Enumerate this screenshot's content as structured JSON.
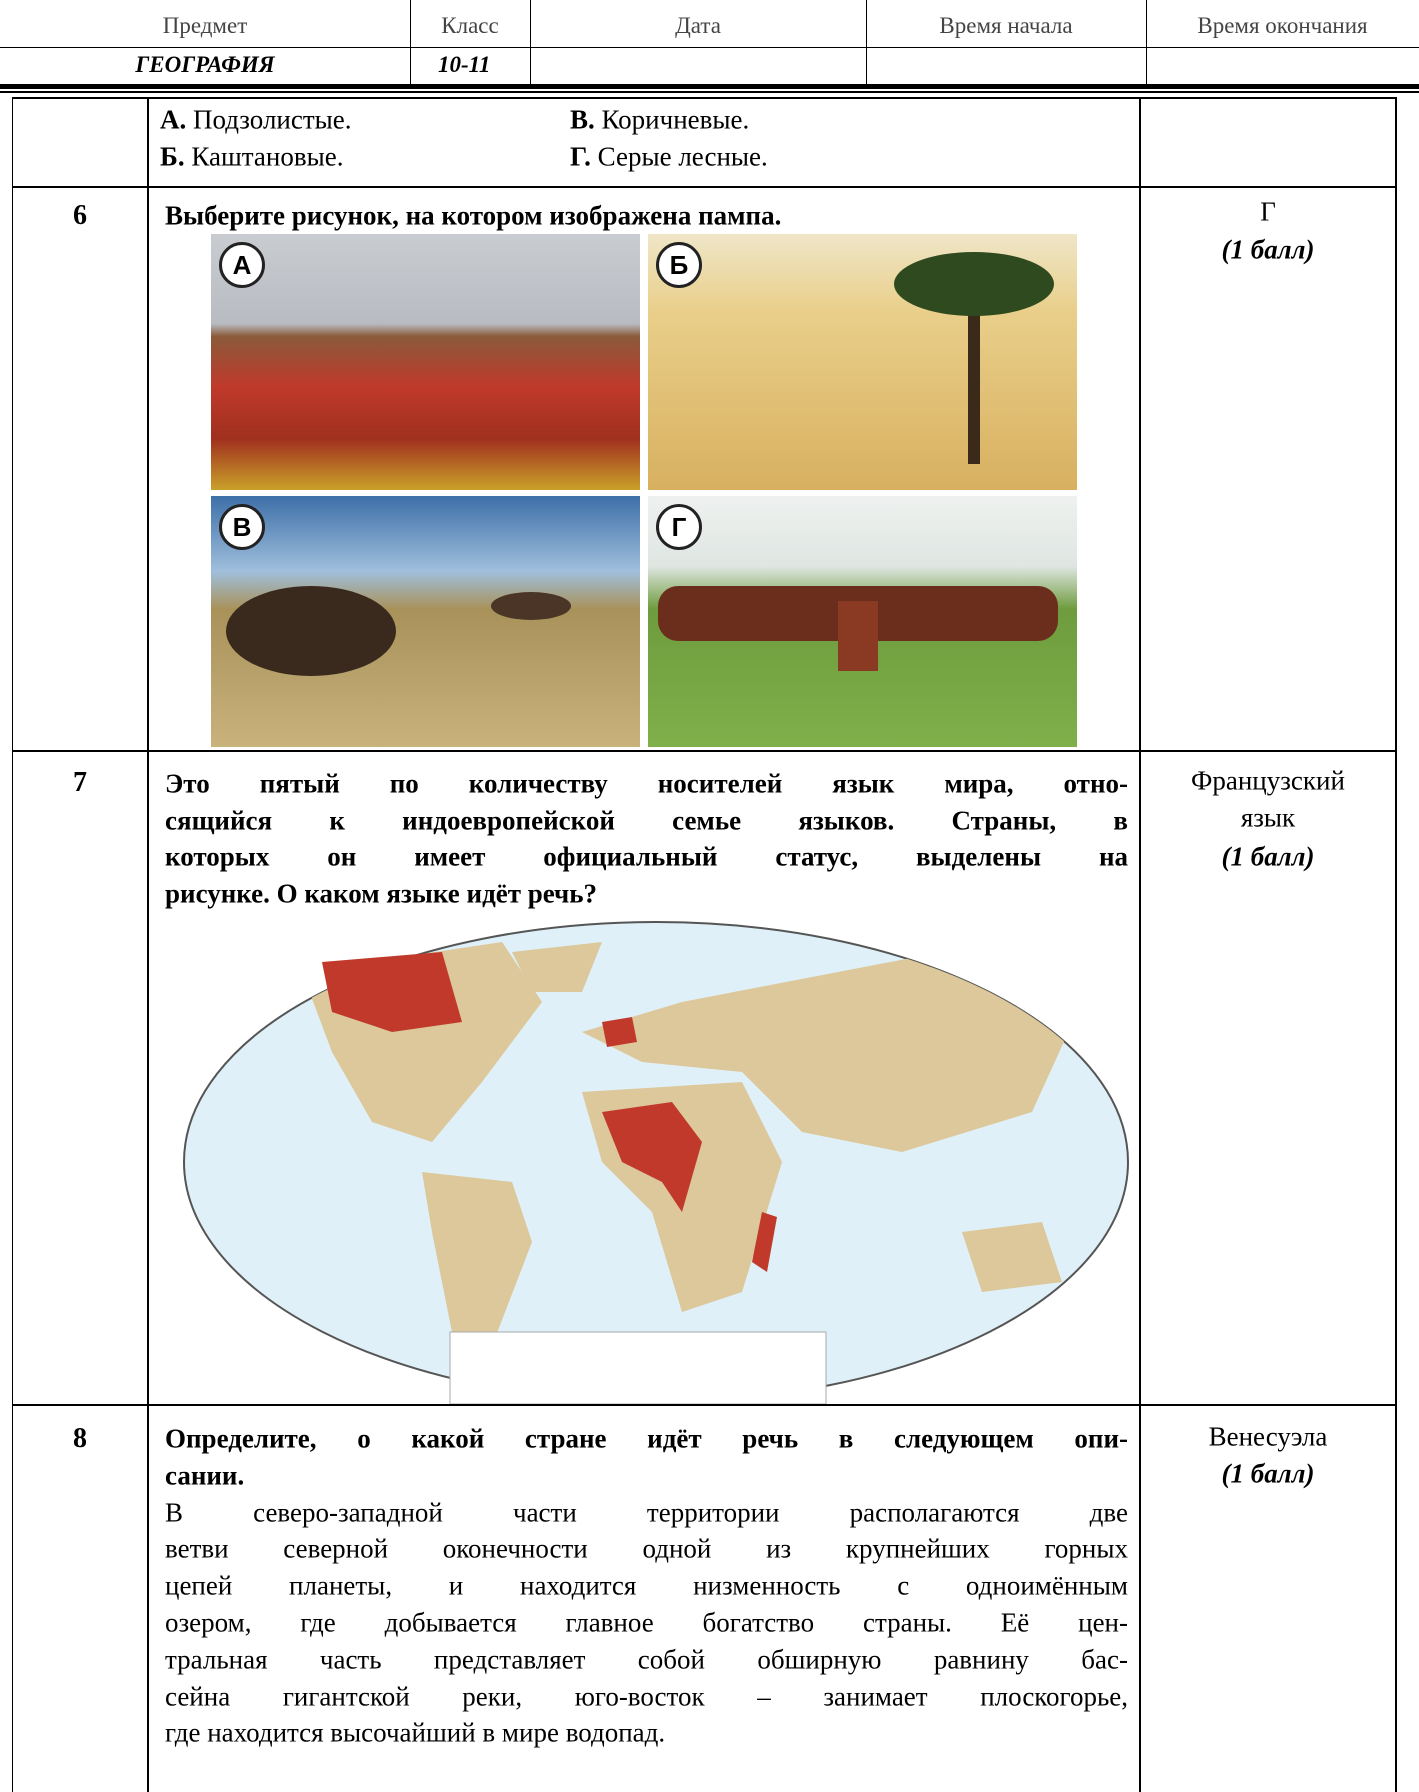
{
  "header": {
    "columns": [
      "Предмет",
      "Класс",
      "Дата",
      "Время начала",
      "Время окончания"
    ],
    "subject": "ГЕОГРАФИЯ",
    "grade": "10-11"
  },
  "options": [
    {
      "label": "А.",
      "text": "Подзолистые."
    },
    {
      "label": "В.",
      "text": "Коричневые."
    },
    {
      "label": "Б.",
      "text": "Каштановые."
    },
    {
      "label": "Г.",
      "text": "Серые лесные."
    }
  ],
  "q6": {
    "number": "6",
    "question": "Выберите рисунок, на котором изображена пампа.",
    "image_labels": [
      "А",
      "Б",
      "В",
      "Г"
    ],
    "answer": "Г",
    "score": "(1 балл)"
  },
  "q7": {
    "number": "7",
    "lines": [
      "Это пятый по количеству носителей язык мира, отно-",
      "сящийся к индоевропейской семье языков. Страны, в",
      "которых он имеет официальный статус, выделены на",
      "рисунке. О каком языке идёт речь?"
    ],
    "answer": [
      "Французский",
      "язык"
    ],
    "score": "(1 балл)"
  },
  "q8": {
    "number": "8",
    "question_lines": [
      "Определите, о какой стране идёт речь в следующем опи-",
      "сании."
    ],
    "text_lines": [
      "В северо-западной части территории располагаются две",
      "ветви северной оконечности одной из крупнейших горных",
      "цепей планеты, и находится низменность с одноимённым",
      "озером, где добывается главное богатство страны. Её цен-",
      "тральная часть представляет собой обширную равнину бас-",
      "сейна гигантской реки, юго-восток – занимает плоскогорье,",
      "где находится высочайший в мире водопад."
    ],
    "answer": "Венесуэла",
    "score": "(1 балл)"
  }
}
